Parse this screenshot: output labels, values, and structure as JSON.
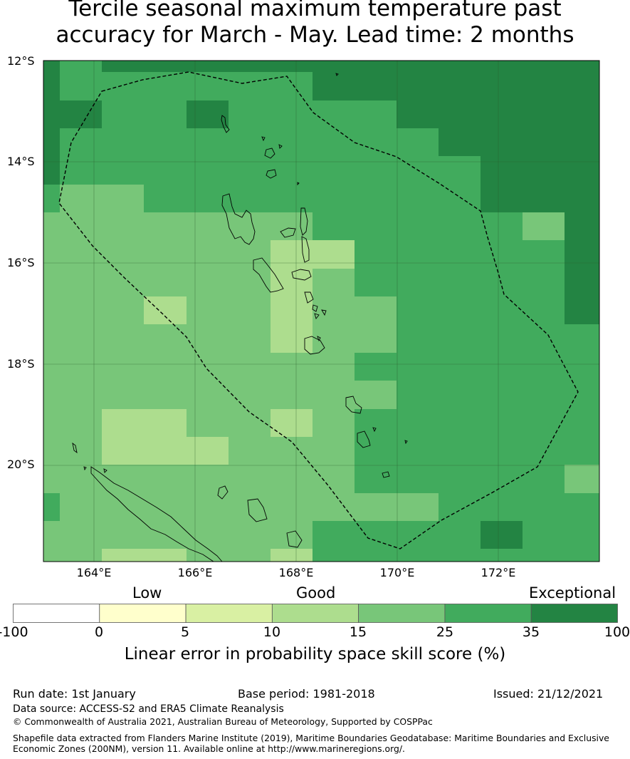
{
  "title": {
    "line1": "Tercile seasonal maximum temperature past",
    "line2": "accuracy for March - May. Lead time: 2 months"
  },
  "map": {
    "lat_labels": [
      "12°S",
      "14°S",
      "16°S",
      "18°S",
      "20°S"
    ],
    "lon_labels": [
      "164°E",
      "166°E",
      "168°E",
      "170°E",
      "172°E"
    ]
  },
  "colorbar": {
    "category_labels": {
      "low": "Low",
      "good": "Good",
      "exceptional": "Exceptional"
    },
    "ticks": [
      "-100",
      "0",
      "5",
      "10",
      "15",
      "25",
      "35",
      "100"
    ],
    "colors": [
      "#ffffff",
      "#ffffcc",
      "#d9f0a3",
      "#addd8e",
      "#78c679",
      "#41ab5d",
      "#238443"
    ],
    "label": "Linear error in probability space skill score (%)"
  },
  "footer": {
    "run_date": "Run date: 1st January",
    "base_period": "Base period: 1981-2018",
    "issued": "Issued: 21/12/2021",
    "data_source": "Data source: ACCESS-S2 and ERA5 Climate Reanalysis",
    "copyright": "© Commonwealth of Australia 2021, Australian Bureau of Meteorology, Supported by COSPPac",
    "shapefile_line1": "Shapefile data extracted from Flanders Marine Institute (2019), Maritime Boundaries Geodatabase: Maritime Boundaries and Exclusive",
    "shapefile_line2": "Economic Zones (200NM), version 11. Available online at http://www.marineregions.org/."
  }
}
